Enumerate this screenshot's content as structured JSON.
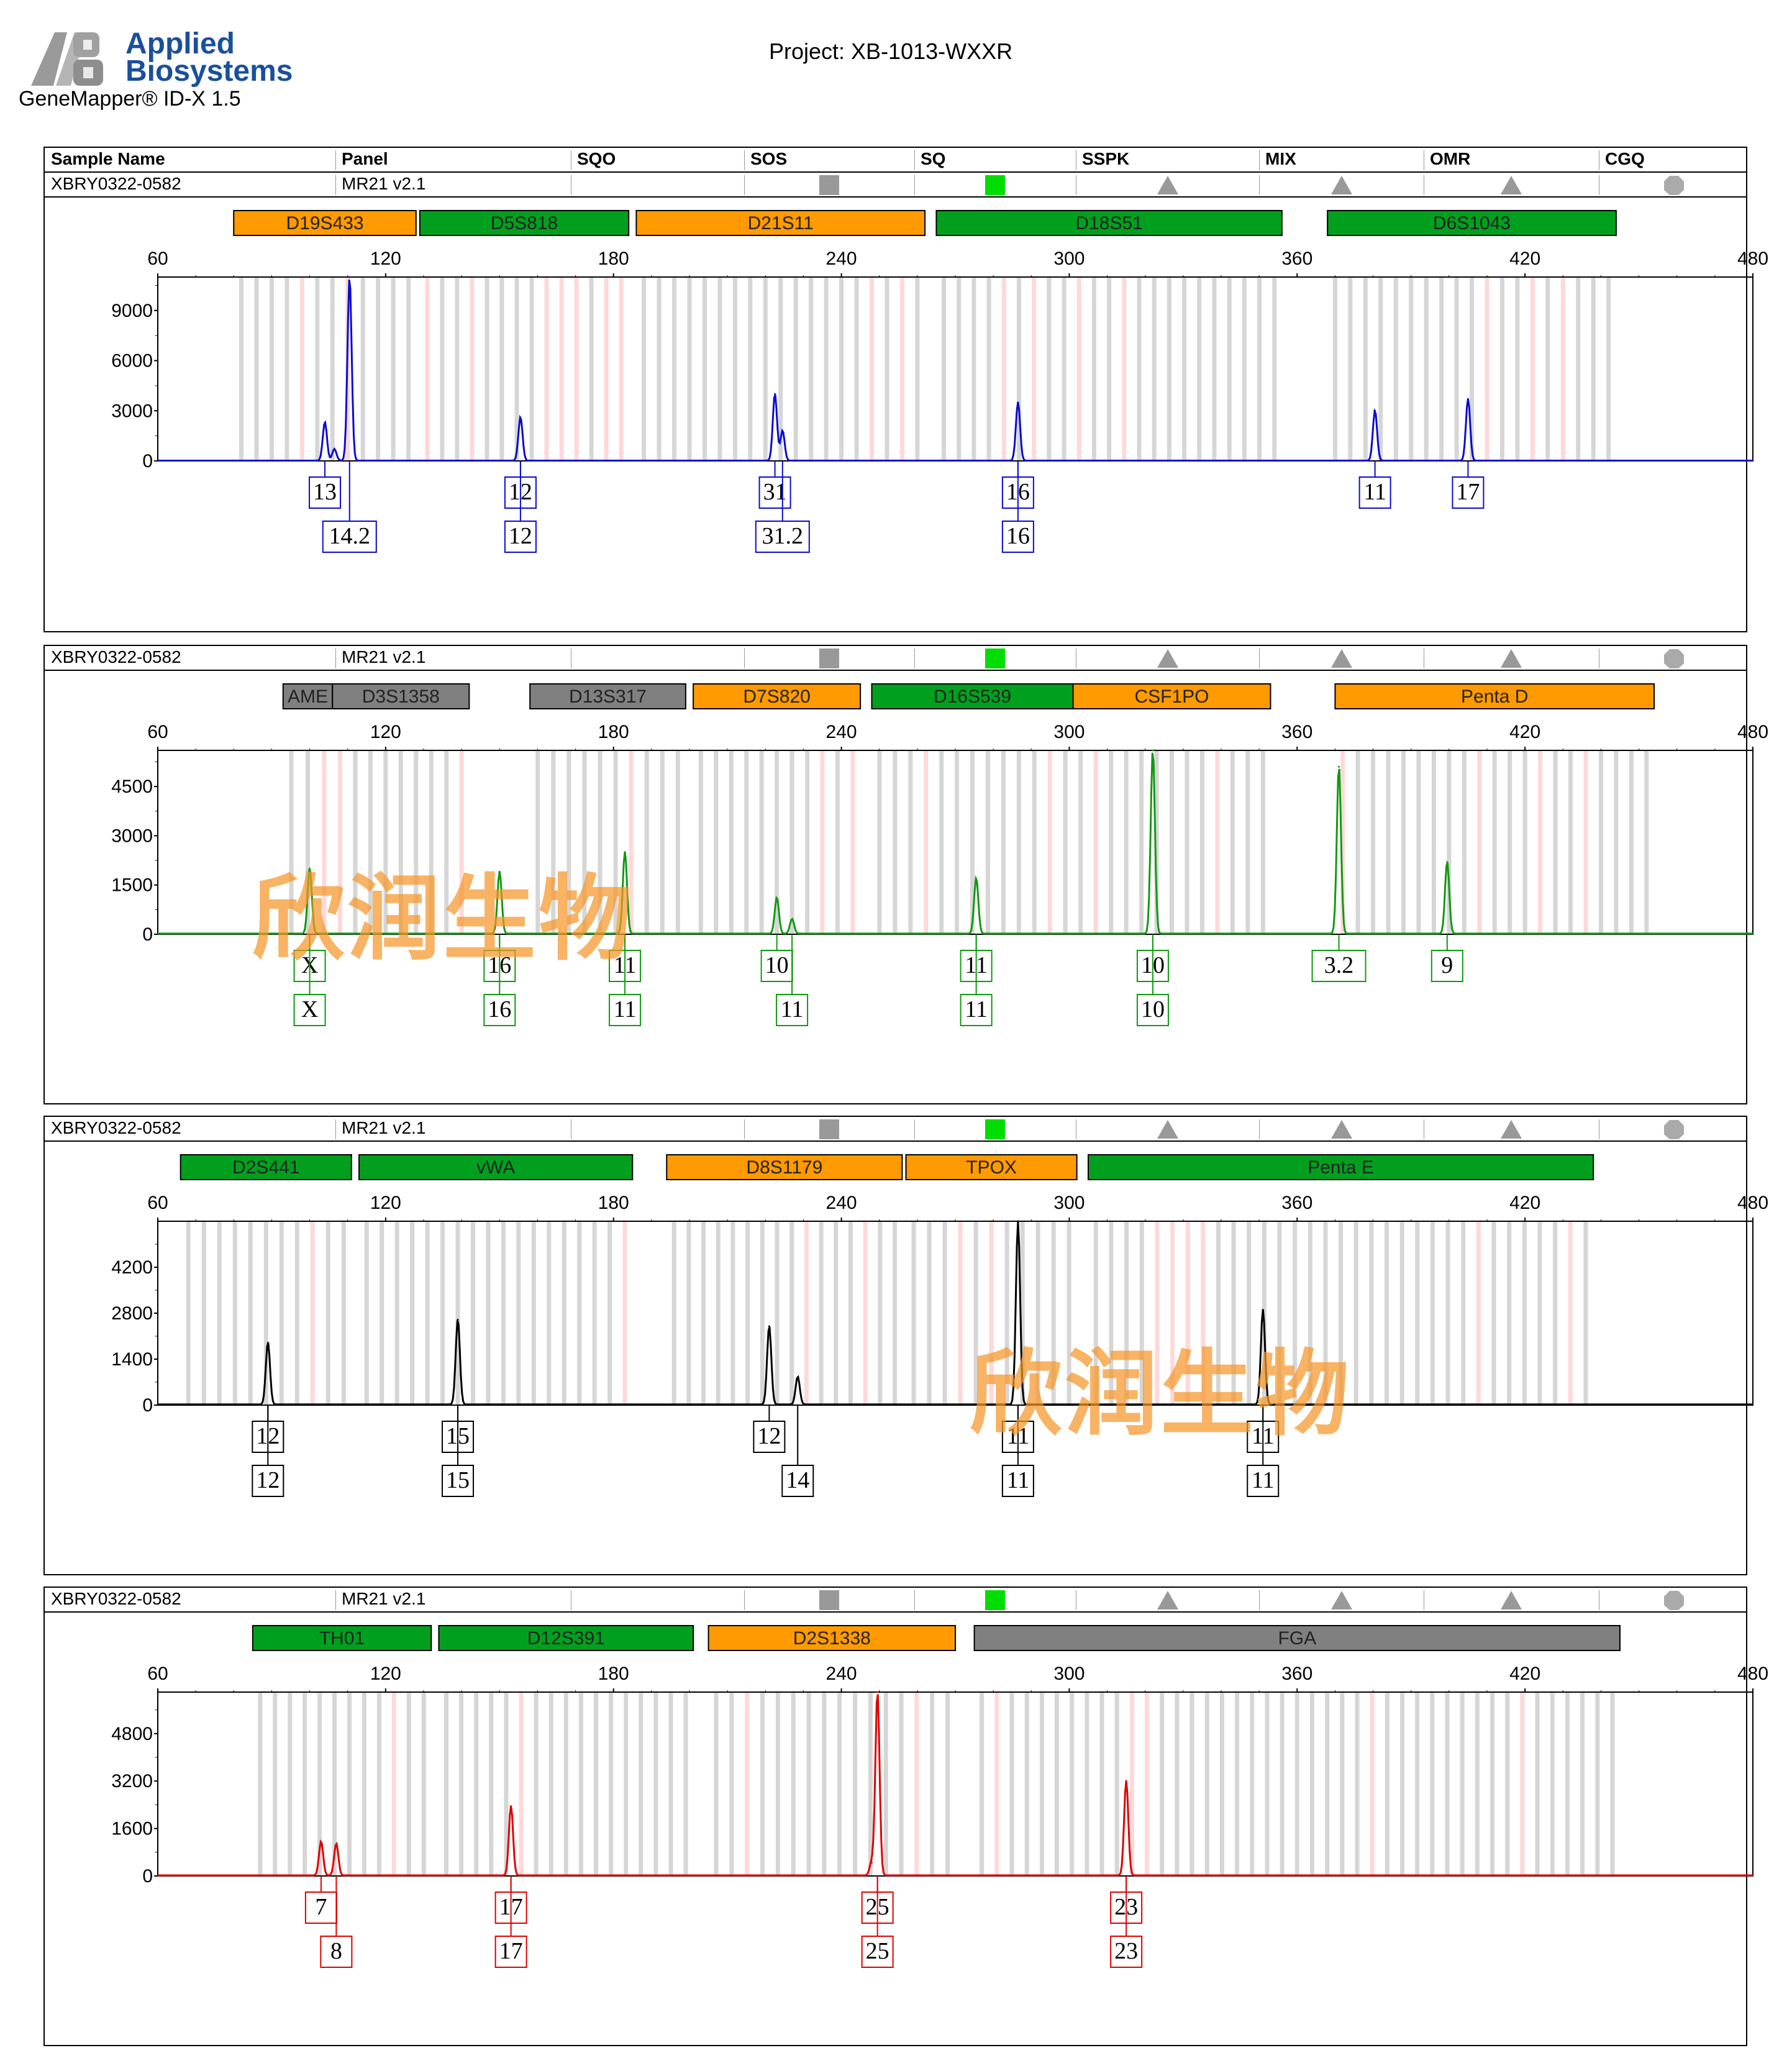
{
  "header": {
    "brand_line1": "Applied",
    "brand_line2": "Biosystems",
    "software": "GeneMapper® ID-X  1.5",
    "project": "Project: XB-1013-WXXR",
    "brand_color": "#1a4f9c"
  },
  "table_headers": [
    "Sample Name",
    "Panel",
    "SQO",
    "SOS",
    "SQ",
    "SSPK",
    "MIX",
    "OMR",
    "CGQ"
  ],
  "sample_name": "XBRY0322-0582",
  "panel_name": "MR21  v2.1",
  "quality_flags": [
    {
      "column": "SOS",
      "shape": "square",
      "color": "#999999"
    },
    {
      "column": "SQ",
      "shape": "square",
      "color": "#00dd00"
    },
    {
      "column": "SSPK",
      "shape": "triangle",
      "color": "#999999"
    },
    {
      "column": "MIX",
      "shape": "triangle",
      "color": "#999999"
    },
    {
      "column": "OMR",
      "shape": "triangle",
      "color": "#999999"
    },
    {
      "column": "CGQ",
      "shape": "octagon",
      "color": "#aaaaaa"
    }
  ],
  "marker_colors": {
    "orange": "#ff9a00",
    "green": "#00a01e",
    "gray": "#808080"
  },
  "watermark": "欣润生物",
  "chart_data": [
    {
      "type": "line",
      "dye_color": "#0a0ad2",
      "xlim": [
        60,
        480
      ],
      "xticks": [
        60,
        120,
        180,
        240,
        300,
        360,
        420,
        480
      ],
      "ylim": [
        0,
        11000
      ],
      "yticks": [
        0,
        3000,
        6000,
        9000
      ],
      "markers": [
        {
          "name": "D19S433",
          "start": 80,
          "end": 128,
          "color": "orange"
        },
        {
          "name": "D5S818",
          "start": 129,
          "end": 184,
          "color": "green"
        },
        {
          "name": "D21S11",
          "start": 186,
          "end": 262,
          "color": "orange"
        },
        {
          "name": "D18S51",
          "start": 265,
          "end": 356,
          "color": "green"
        },
        {
          "name": "D6S1043",
          "start": 368,
          "end": 444,
          "color": "green"
        }
      ],
      "peaks": [
        {
          "x": 104,
          "y": 2300
        },
        {
          "x": 106.5,
          "y": 700
        },
        {
          "x": 110.5,
          "y": 11000
        },
        {
          "x": 155.5,
          "y": 2600
        },
        {
          "x": 222.5,
          "y": 4000
        },
        {
          "x": 224.5,
          "y": 1800
        },
        {
          "x": 286.5,
          "y": 3500
        },
        {
          "x": 380.5,
          "y": 3000
        },
        {
          "x": 405,
          "y": 3700
        }
      ],
      "labels": [
        {
          "x": 104,
          "row": 1,
          "text": "13"
        },
        {
          "x": 110.5,
          "row": 2,
          "text": "14.2"
        },
        {
          "x": 155.5,
          "row": 1,
          "text": "12"
        },
        {
          "x": 155.5,
          "row": 2,
          "text": "12"
        },
        {
          "x": 222.5,
          "row": 1,
          "text": "31"
        },
        {
          "x": 224.5,
          "row": 2,
          "text": "31.2"
        },
        {
          "x": 286.5,
          "row": 1,
          "text": "16"
        },
        {
          "x": 286.5,
          "row": 2,
          "text": "16"
        },
        {
          "x": 380.5,
          "row": 1,
          "text": "11"
        },
        {
          "x": 405,
          "row": 1,
          "text": "17"
        }
      ]
    },
    {
      "type": "line",
      "dye_color": "#109a10",
      "xlim": [
        60,
        480
      ],
      "xticks": [
        60,
        120,
        180,
        240,
        300,
        360,
        420,
        480
      ],
      "ylim": [
        0,
        5600
      ],
      "yticks": [
        0,
        1500,
        3000,
        4500
      ],
      "markers": [
        {
          "name": "AME",
          "start": 93,
          "end": 106,
          "color": "gray"
        },
        {
          "name": "D3S1358",
          "start": 106,
          "end": 142,
          "color": "gray"
        },
        {
          "name": "D13S317",
          "start": 158,
          "end": 199,
          "color": "gray"
        },
        {
          "name": "D7S820",
          "start": 201,
          "end": 245,
          "color": "orange"
        },
        {
          "name": "D16S539",
          "start": 248,
          "end": 301,
          "color": "green"
        },
        {
          "name": "CSF1PO",
          "start": 301,
          "end": 353,
          "color": "orange"
        },
        {
          "name": "Penta D",
          "start": 370,
          "end": 454,
          "color": "orange"
        }
      ],
      "peaks": [
        {
          "x": 100,
          "y": 2000
        },
        {
          "x": 150,
          "y": 1900
        },
        {
          "x": 183,
          "y": 2500
        },
        {
          "x": 223,
          "y": 1100
        },
        {
          "x": 227,
          "y": 450
        },
        {
          "x": 275.5,
          "y": 1700
        },
        {
          "x": 322,
          "y": 5600
        },
        {
          "x": 371,
          "y": 5100
        },
        {
          "x": 399.5,
          "y": 2200
        }
      ],
      "labels": [
        {
          "x": 100,
          "row": 1,
          "text": "X"
        },
        {
          "x": 100,
          "row": 2,
          "text": "X"
        },
        {
          "x": 150,
          "row": 1,
          "text": "16"
        },
        {
          "x": 150,
          "row": 2,
          "text": "16"
        },
        {
          "x": 183,
          "row": 1,
          "text": "11"
        },
        {
          "x": 183,
          "row": 2,
          "text": "11"
        },
        {
          "x": 223,
          "row": 1,
          "text": "10"
        },
        {
          "x": 227,
          "row": 2,
          "text": "11"
        },
        {
          "x": 275.5,
          "row": 1,
          "text": "11"
        },
        {
          "x": 275.5,
          "row": 2,
          "text": "11"
        },
        {
          "x": 322,
          "row": 1,
          "text": "10"
        },
        {
          "x": 322,
          "row": 2,
          "text": "10"
        },
        {
          "x": 371,
          "row": 1,
          "text": "3.2"
        },
        {
          "x": 399.5,
          "row": 1,
          "text": "9"
        }
      ]
    },
    {
      "type": "line",
      "dye_color": "#000000",
      "xlim": [
        60,
        480
      ],
      "xticks": [
        60,
        120,
        180,
        240,
        300,
        360,
        420,
        480
      ],
      "ylim": [
        0,
        5600
      ],
      "yticks": [
        0,
        1400,
        2800,
        4200
      ],
      "markers": [
        {
          "name": "D2S441",
          "start": 66,
          "end": 111,
          "color": "green"
        },
        {
          "name": "vWA",
          "start": 113,
          "end": 185,
          "color": "green"
        },
        {
          "name": "D8S1179",
          "start": 194,
          "end": 256,
          "color": "orange"
        },
        {
          "name": "TPOX",
          "start": 257,
          "end": 302,
          "color": "orange"
        },
        {
          "name": "Penta E",
          "start": 305,
          "end": 438,
          "color": "green"
        }
      ],
      "peaks": [
        {
          "x": 89,
          "y": 1900
        },
        {
          "x": 139,
          "y": 2600
        },
        {
          "x": 221,
          "y": 2400
        },
        {
          "x": 228.5,
          "y": 850
        },
        {
          "x": 286.5,
          "y": 5600
        },
        {
          "x": 351,
          "y": 2900
        }
      ],
      "labels": [
        {
          "x": 89,
          "row": 1,
          "text": "12"
        },
        {
          "x": 89,
          "row": 2,
          "text": "12"
        },
        {
          "x": 139,
          "row": 1,
          "text": "15"
        },
        {
          "x": 139,
          "row": 2,
          "text": "15"
        },
        {
          "x": 221,
          "row": 1,
          "text": "12"
        },
        {
          "x": 228.5,
          "row": 2,
          "text": "14"
        },
        {
          "x": 286.5,
          "row": 1,
          "text": "11"
        },
        {
          "x": 286.5,
          "row": 2,
          "text": "11"
        },
        {
          "x": 351,
          "row": 1,
          "text": "11"
        },
        {
          "x": 351,
          "row": 2,
          "text": "11"
        }
      ]
    },
    {
      "type": "line",
      "dye_color": "#e00000",
      "xlim": [
        60,
        480
      ],
      "xticks": [
        60,
        120,
        180,
        240,
        300,
        360,
        420,
        480
      ],
      "ylim": [
        0,
        6200
      ],
      "yticks": [
        0,
        1600,
        3200,
        4800
      ],
      "markers": [
        {
          "name": "TH01",
          "start": 85,
          "end": 132,
          "color": "green"
        },
        {
          "name": "D12S391",
          "start": 134,
          "end": 201,
          "color": "green"
        },
        {
          "name": "D2S1338",
          "start": 205,
          "end": 270,
          "color": "orange"
        },
        {
          "name": "FGA",
          "start": 275,
          "end": 445,
          "color": "gray"
        }
      ],
      "peaks": [
        {
          "x": 103,
          "y": 1150
        },
        {
          "x": 107,
          "y": 1080
        },
        {
          "x": 153,
          "y": 2350
        },
        {
          "x": 249.5,
          "y": 6200
        },
        {
          "x": 248,
          "y": 450
        },
        {
          "x": 315,
          "y": 3200
        }
      ],
      "labels": [
        {
          "x": 103,
          "row": 1,
          "text": "7"
        },
        {
          "x": 107,
          "row": 2,
          "text": "8"
        },
        {
          "x": 153,
          "row": 1,
          "text": "17"
        },
        {
          "x": 153,
          "row": 2,
          "text": "17"
        },
        {
          "x": 249.5,
          "row": 1,
          "text": "25"
        },
        {
          "x": 249.5,
          "row": 2,
          "text": "25"
        },
        {
          "x": 315,
          "row": 1,
          "text": "23"
        },
        {
          "x": 315,
          "row": 2,
          "text": "23"
        }
      ]
    }
  ]
}
